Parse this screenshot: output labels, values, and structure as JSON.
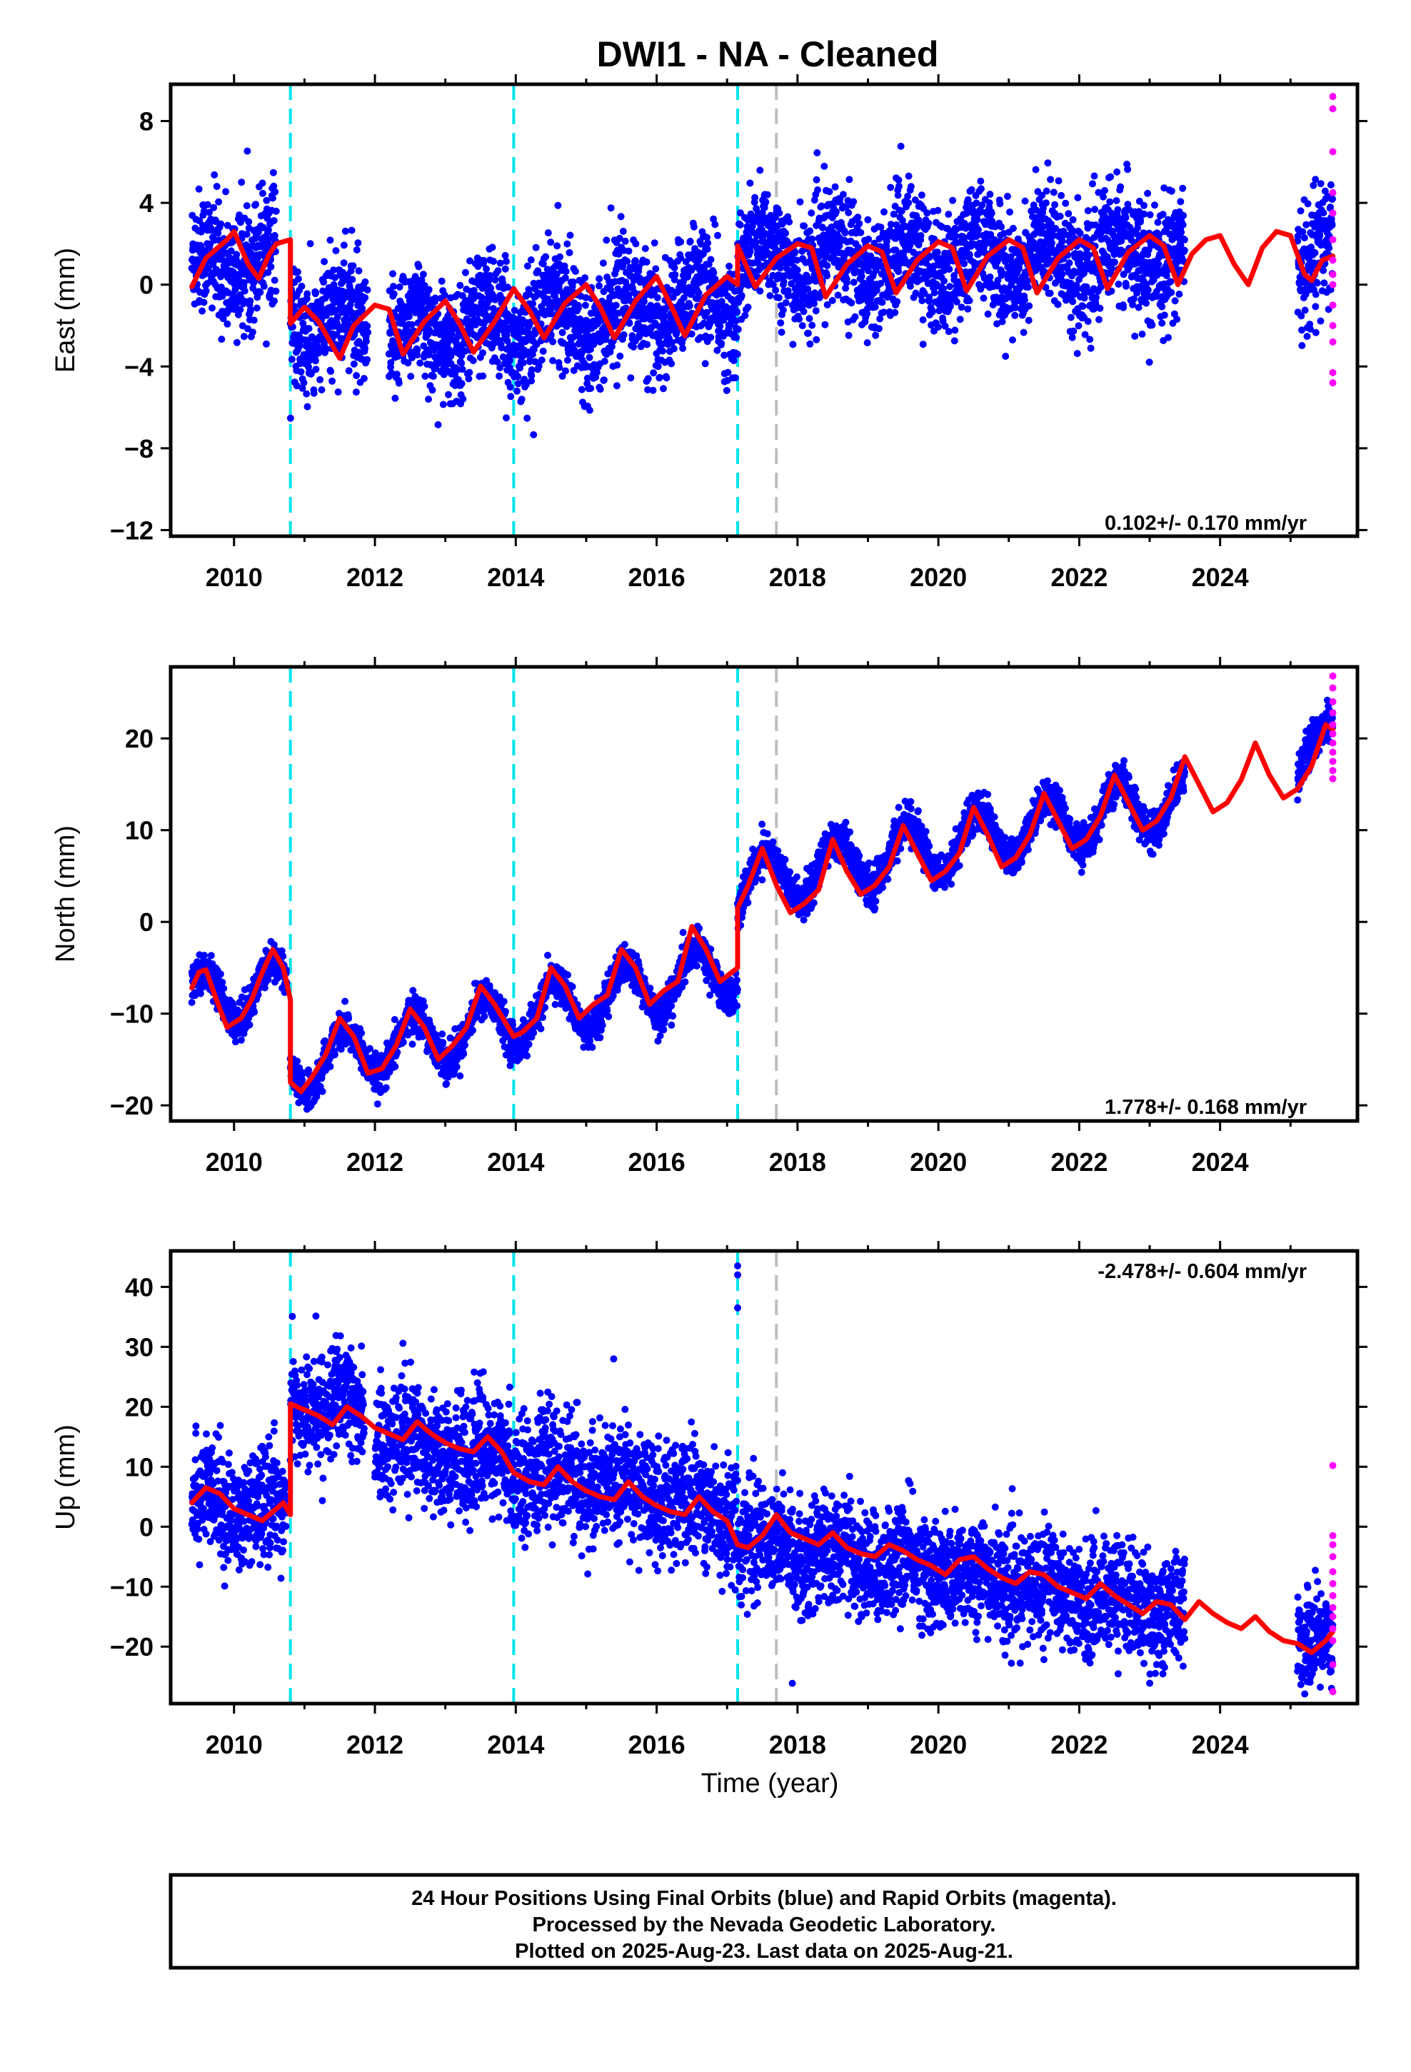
{
  "title": "DWI1  - NA - Cleaned",
  "xlabel": "Time (year)",
  "xticks": [
    "2010",
    "2012",
    "2014",
    "2016",
    "2018",
    "2020",
    "2022",
    "2024"
  ],
  "footer": {
    "line1": "24 Hour Positions Using Final Orbits (blue) and Rapid Orbits (magenta).",
    "line2": "Processed by the Nevada Geodetic Laboratory.",
    "line3": "Plotted on 2025-Aug-23. Last data on 2025-Aug-21."
  },
  "colors": {
    "final_orbits": "#0000ff",
    "rapid_orbits": "#ff00ff",
    "model": "#ff0000",
    "equipment_change": "#00e5ee",
    "other_event": "#bebebe"
  },
  "chart_data": [
    {
      "type": "scatter",
      "name": "east",
      "ylabel": "East (mm)",
      "rate": "0.102+/- 0.170 mm/yr",
      "xlim": [
        2009.1,
        2025.95
      ],
      "ylim": [
        -12.3,
        9.8
      ],
      "yticks": [
        "8",
        "4",
        "0",
        "−4",
        "−8",
        "−12"
      ],
      "ytick_values": [
        8,
        4,
        0,
        -4,
        -8,
        -12
      ],
      "event_lines": {
        "cyan": [
          2010.8,
          2013.97,
          2017.15
        ],
        "gray": [
          2017.7
        ]
      },
      "model": {
        "x": [
          2009.4,
          2009.6,
          2009.9,
          2010.0,
          2010.2,
          2010.35,
          2010.5,
          2010.6,
          2010.8,
          2010.8,
          2011.0,
          2011.2,
          2011.5,
          2011.7,
          2012.0,
          2012.2,
          2012.4,
          2012.7,
          2013.0,
          2013.2,
          2013.4,
          2013.7,
          2013.97,
          2014.2,
          2014.4,
          2014.7,
          2015.0,
          2015.2,
          2015.4,
          2015.7,
          2016.0,
          2016.2,
          2016.4,
          2016.7,
          2017.0,
          2017.15,
          2017.15,
          2017.4,
          2017.7,
          2018.0,
          2018.2,
          2018.4,
          2018.7,
          2019.0,
          2019.2,
          2019.4,
          2019.7,
          2020.0,
          2020.2,
          2020.4,
          2020.7,
          2021.0,
          2021.2,
          2021.4,
          2021.7,
          2022.0,
          2022.2,
          2022.4,
          2022.7,
          2023.0,
          2023.2,
          2023.4,
          2023.6,
          2023.8,
          2024.0,
          2024.2,
          2024.4,
          2024.6,
          2024.8,
          2025.0,
          2025.2,
          2025.3,
          2025.45,
          2025.6
        ],
        "y": [
          -0.1,
          1.3,
          2.2,
          2.6,
          1.0,
          0.3,
          1.5,
          2.0,
          2.2,
          -1.9,
          -1.1,
          -1.8,
          -3.6,
          -2.0,
          -1.0,
          -1.2,
          -3.4,
          -1.8,
          -0.8,
          -1.9,
          -3.3,
          -1.8,
          -0.2,
          -1.3,
          -2.6,
          -0.9,
          0.0,
          -1.1,
          -2.6,
          -0.8,
          0.4,
          -1.0,
          -2.5,
          -0.5,
          0.4,
          0.0,
          1.9,
          -0.1,
          1.3,
          2.0,
          1.8,
          -0.6,
          1.0,
          1.9,
          1.6,
          -0.4,
          1.2,
          2.1,
          1.8,
          -0.3,
          1.4,
          2.2,
          1.8,
          -0.4,
          1.3,
          2.2,
          1.8,
          -0.2,
          1.6,
          2.4,
          1.9,
          0.0,
          1.5,
          2.2,
          2.4,
          1.0,
          0.0,
          1.8,
          2.6,
          2.4,
          0.5,
          0.2,
          1.2,
          1.4
        ]
      },
      "final_orbits": {
        "segments": [
          {
            "start": 2009.4,
            "end": 2010.6,
            "trend": [
              0.8,
              1.6
            ],
            "amp": 0.8,
            "noise": 1.5
          },
          {
            "start": 2010.8,
            "end": 2011.9,
            "trend": [
              -1.5,
              -2.4
            ],
            "amp": 1.2,
            "noise": 1.5
          },
          {
            "start": 2012.2,
            "end": 2017.15,
            "trend": [
              -2.6,
              -0.6
            ],
            "amp": 1.0,
            "noise": 1.4
          },
          {
            "start": 2017.15,
            "end": 2023.5,
            "trend": [
              1.2,
              1.4
            ],
            "amp": 1.0,
            "noise": 1.4
          },
          {
            "start": 2025.1,
            "end": 2025.6,
            "trend": [
              1.0,
              1.4
            ],
            "amp": 0.8,
            "noise": 1.6
          }
        ]
      },
      "rapid_orbits": {
        "x": [
          2025.6,
          2025.6,
          2025.6,
          2025.6,
          2025.6,
          2025.6,
          2025.6,
          2025.6,
          2025.6,
          2025.6,
          2025.6,
          2025.6,
          2025.6,
          2025.6
        ],
        "y": [
          9.2,
          8.6,
          6.5,
          4.5,
          3.5,
          2.2,
          1.2,
          0.5,
          0.0,
          -1.0,
          -2.0,
          -2.8,
          -4.3,
          -4.8
        ]
      }
    },
    {
      "type": "scatter",
      "name": "north",
      "ylabel": "North (mm)",
      "rate": "1.778+/- 0.168 mm/yr",
      "xlim": [
        2009.1,
        2025.95
      ],
      "ylim": [
        -21.7,
        27.8
      ],
      "yticks": [
        "20",
        "10",
        "0",
        "−10",
        "−20"
      ],
      "ytick_values": [
        20,
        10,
        0,
        -10,
        -20
      ],
      "event_lines": {
        "cyan": [
          2010.8,
          2013.97,
          2017.15
        ],
        "gray": [
          2017.7
        ]
      },
      "model": {
        "x": [
          2009.4,
          2009.5,
          2009.6,
          2009.75,
          2009.9,
          2010.1,
          2010.25,
          2010.4,
          2010.55,
          2010.7,
          2010.8,
          2010.8,
          2010.95,
          2011.1,
          2011.3,
          2011.5,
          2011.7,
          2011.9,
          2012.1,
          2012.3,
          2012.5,
          2012.7,
          2012.9,
          2013.1,
          2013.3,
          2013.5,
          2013.7,
          2013.97,
          2014.1,
          2014.3,
          2014.5,
          2014.7,
          2014.9,
          2015.1,
          2015.3,
          2015.5,
          2015.7,
          2015.9,
          2016.1,
          2016.3,
          2016.5,
          2016.7,
          2016.9,
          2017.15,
          2017.15,
          2017.3,
          2017.5,
          2017.7,
          2017.9,
          2018.1,
          2018.3,
          2018.5,
          2018.7,
          2018.9,
          2019.1,
          2019.3,
          2019.5,
          2019.7,
          2019.9,
          2020.1,
          2020.3,
          2020.5,
          2020.7,
          2020.9,
          2021.1,
          2021.3,
          2021.5,
          2021.7,
          2021.9,
          2022.1,
          2022.3,
          2022.5,
          2022.7,
          2022.9,
          2023.1,
          2023.3,
          2023.5,
          2023.7,
          2023.9,
          2024.1,
          2024.3,
          2024.5,
          2024.7,
          2024.9,
          2025.1,
          2025.3,
          2025.5,
          2025.6
        ],
        "y": [
          -7.2,
          -5.5,
          -5.2,
          -8.5,
          -11.5,
          -10.5,
          -8.5,
          -5.5,
          -3.0,
          -5.0,
          -8.5,
          -17.5,
          -18.5,
          -17.0,
          -14.5,
          -10.5,
          -12.5,
          -16.5,
          -16.0,
          -13.5,
          -9.5,
          -11.5,
          -15.0,
          -13.5,
          -11.5,
          -7.0,
          -9.0,
          -12.5,
          -12.0,
          -10.5,
          -5.0,
          -7.0,
          -10.5,
          -9.0,
          -8.0,
          -3.0,
          -5.0,
          -9.0,
          -7.5,
          -6.5,
          -0.5,
          -3.0,
          -6.5,
          -5.0,
          1.5,
          4.0,
          8.0,
          4.0,
          1.0,
          2.0,
          3.5,
          9.0,
          5.5,
          3.0,
          4.0,
          6.0,
          10.5,
          7.5,
          4.5,
          5.5,
          7.5,
          12.5,
          9.5,
          6.0,
          7.0,
          9.5,
          14.0,
          11.0,
          8.0,
          9.0,
          11.5,
          16.0,
          13.0,
          10.0,
          11.0,
          13.5,
          18.0,
          15.0,
          12.0,
          13.0,
          15.5,
          19.5,
          16.0,
          13.5,
          14.5,
          17.0,
          21.5,
          21.0
        ]
      },
      "final_orbits": {
        "segments": [
          {
            "start": 2009.4,
            "end": 2010.75,
            "trend": [
              -8.5,
              -7.0
            ],
            "amp": 3.0,
            "noise": 1.0
          },
          {
            "start": 2010.8,
            "end": 2017.15,
            "trend": [
              -16.0,
              -5.0
            ],
            "amp": 3.0,
            "noise": 1.0
          },
          {
            "start": 2017.15,
            "end": 2023.5,
            "trend": [
              4.0,
              13.5
            ],
            "amp": 3.0,
            "noise": 1.0
          },
          {
            "start": 2025.1,
            "end": 2025.6,
            "trend": [
              18.0,
              20.5
            ],
            "amp": 2.0,
            "noise": 1.2
          }
        ]
      },
      "rapid_orbits": {
        "x": [
          2025.6,
          2025.6,
          2025.6,
          2025.6,
          2025.6,
          2025.6,
          2025.6,
          2025.6,
          2025.6,
          2025.6,
          2025.6
        ],
        "y": [
          26.8,
          25.5,
          24.0,
          22.8,
          21.5,
          20.5,
          19.5,
          18.5,
          17.5,
          16.5,
          15.6
        ]
      }
    },
    {
      "type": "scatter",
      "name": "up",
      "ylabel": "Up (mm)",
      "rate": "-2.478+/- 0.604 mm/yr",
      "xlim": [
        2009.1,
        2025.95
      ],
      "ylim": [
        -29.5,
        46.0
      ],
      "yticks": [
        "40",
        "30",
        "20",
        "10",
        "0",
        "−10",
        "−20"
      ],
      "ytick_values": [
        40,
        30,
        20,
        10,
        0,
        -10,
        -20
      ],
      "event_lines": {
        "cyan": [
          2010.8,
          2013.97,
          2017.15
        ],
        "gray": [
          2017.7
        ]
      },
      "model": {
        "x": [
          2009.4,
          2009.6,
          2009.8,
          2010.0,
          2010.2,
          2010.4,
          2010.55,
          2010.7,
          2010.8,
          2010.8,
          2011.0,
          2011.2,
          2011.4,
          2011.6,
          2011.8,
          2012.0,
          2012.2,
          2012.4,
          2012.6,
          2012.8,
          2013.0,
          2013.2,
          2013.4,
          2013.6,
          2013.8,
          2013.97,
          2014.2,
          2014.4,
          2014.6,
          2014.8,
          2015.0,
          2015.2,
          2015.4,
          2015.6,
          2015.8,
          2016.0,
          2016.2,
          2016.4,
          2016.6,
          2016.8,
          2017.0,
          2017.15,
          2017.3,
          2017.5,
          2017.7,
          2017.9,
          2018.1,
          2018.3,
          2018.5,
          2018.7,
          2018.9,
          2019.1,
          2019.3,
          2019.5,
          2019.7,
          2019.9,
          2020.1,
          2020.3,
          2020.5,
          2020.7,
          2020.9,
          2021.1,
          2021.3,
          2021.5,
          2021.7,
          2021.9,
          2022.1,
          2022.3,
          2022.5,
          2022.7,
          2022.9,
          2023.1,
          2023.3,
          2023.5,
          2023.7,
          2023.9,
          2024.1,
          2024.3,
          2024.5,
          2024.7,
          2024.9,
          2025.1,
          2025.3,
          2025.5,
          2025.6
        ],
        "y": [
          4.0,
          6.5,
          5.5,
          3.0,
          2.0,
          1.0,
          2.5,
          4.0,
          2.0,
          20.5,
          19.5,
          18.5,
          17.0,
          20.0,
          18.5,
          16.5,
          15.5,
          14.5,
          17.5,
          15.5,
          14.0,
          13.0,
          12.5,
          15.0,
          12.5,
          9.0,
          7.5,
          7.0,
          10.0,
          7.5,
          6.0,
          5.0,
          4.5,
          7.5,
          5.0,
          3.5,
          2.5,
          2.0,
          5.0,
          2.5,
          1.0,
          -3.0,
          -3.5,
          -1.5,
          2.0,
          -1.0,
          -2.0,
          -3.0,
          -1.0,
          -3.5,
          -4.5,
          -5.0,
          -3.0,
          -4.0,
          -5.5,
          -6.5,
          -8.0,
          -5.5,
          -5.0,
          -7.0,
          -8.5,
          -9.5,
          -7.5,
          -8.0,
          -10.0,
          -11.0,
          -12.0,
          -9.5,
          -11.5,
          -13.0,
          -14.5,
          -12.5,
          -13.0,
          -15.5,
          -12.5,
          -14.5,
          -16.0,
          -17.0,
          -15.0,
          -17.5,
          -19.0,
          -19.5,
          -21.0,
          -19.0,
          -17.5
        ]
      },
      "final_orbits": {
        "segments": [
          {
            "start": 2009.4,
            "end": 2010.75,
            "trend": [
              4.0,
              2.5
            ],
            "amp": 2.0,
            "noise": 4.5
          },
          {
            "start": 2010.8,
            "end": 2011.85,
            "trend": [
              20.5,
              19.5
            ],
            "amp": 1.5,
            "noise": 4.5
          },
          {
            "start": 2012.0,
            "end": 2017.15,
            "trend": [
              15.5,
              2.0
            ],
            "amp": 1.5,
            "noise": 4.8
          },
          {
            "start": 2017.15,
            "end": 2023.5,
            "trend": [
              -2.0,
              -14.0
            ],
            "amp": 1.5,
            "noise": 4.5
          },
          {
            "start": 2025.1,
            "end": 2025.6,
            "trend": [
              -18.5,
              -19.0
            ],
            "amp": 1.0,
            "noise": 4.0
          }
        ],
        "outliers": {
          "x": [
            2017.15,
            2017.15,
            2017.15
          ],
          "y": [
            43.5,
            42.0,
            36.5
          ]
        }
      },
      "rapid_orbits": {
        "x": [
          2025.6,
          2025.6,
          2025.6,
          2025.6,
          2025.6,
          2025.6,
          2025.6,
          2025.6,
          2025.6,
          2025.6,
          2025.6,
          2025.6,
          2025.6
        ],
        "y": [
          10.2,
          -1.5,
          -3.0,
          -5.0,
          -7.5,
          -9.5,
          -11.5,
          -13.5,
          -15.0,
          -17.0,
          -19.0,
          -23.0,
          -27.5
        ]
      }
    }
  ]
}
